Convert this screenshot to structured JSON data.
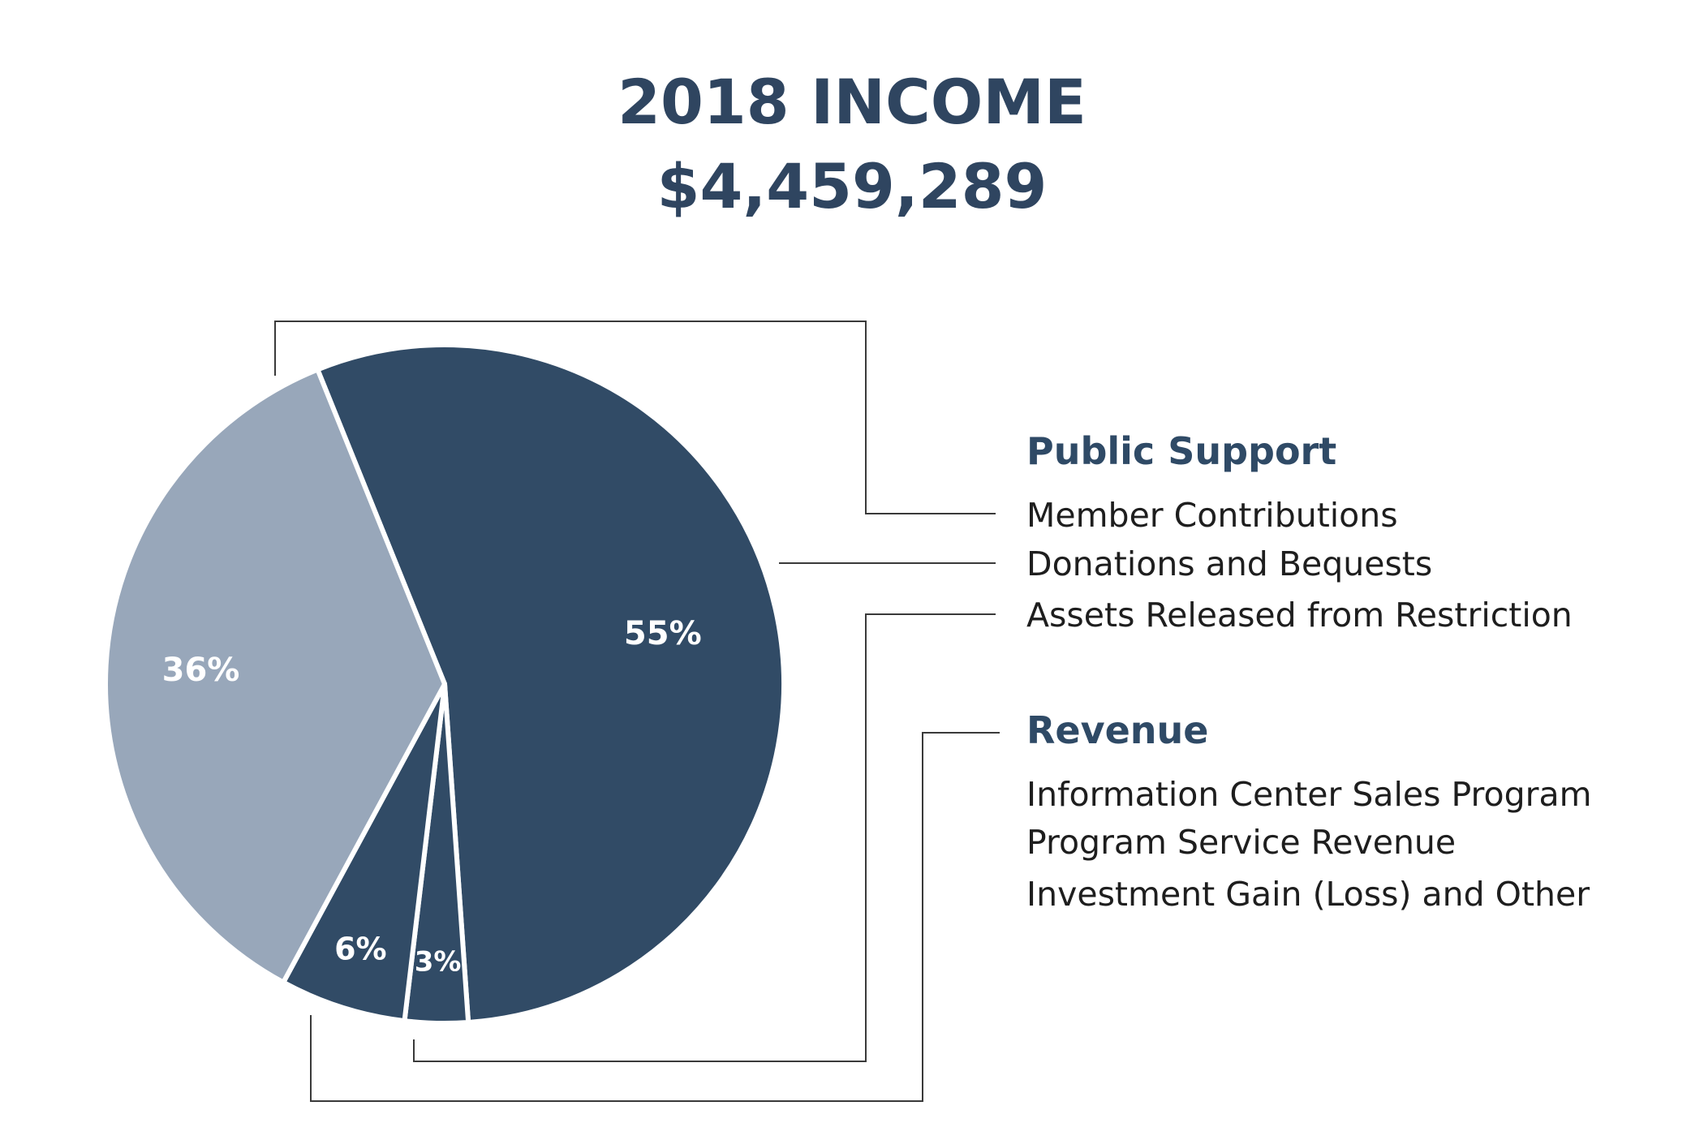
{
  "chart_data": {
    "type": "pie",
    "title": "2018 INCOME",
    "subtitle": "$4,459,289",
    "slices": [
      {
        "label": "55%",
        "value": 55,
        "color": "#314b66"
      },
      {
        "label": "3%",
        "value": 3,
        "color": "#314b66"
      },
      {
        "label": "6%",
        "value": 6,
        "color": "#314b66"
      },
      {
        "label": "36%",
        "value": 36,
        "color": "#98a7ba"
      }
    ],
    "legend": {
      "groups": [
        {
          "heading": "Public Support",
          "items": [
            "Member Contributions",
            "Donations and Bequests",
            "Assets Released from Restriction"
          ]
        },
        {
          "heading": "Revenue",
          "items": [
            "Information Center Sales Program",
            "Program Service Revenue",
            "Investment Gain (Loss) and Other"
          ]
        }
      ]
    }
  }
}
